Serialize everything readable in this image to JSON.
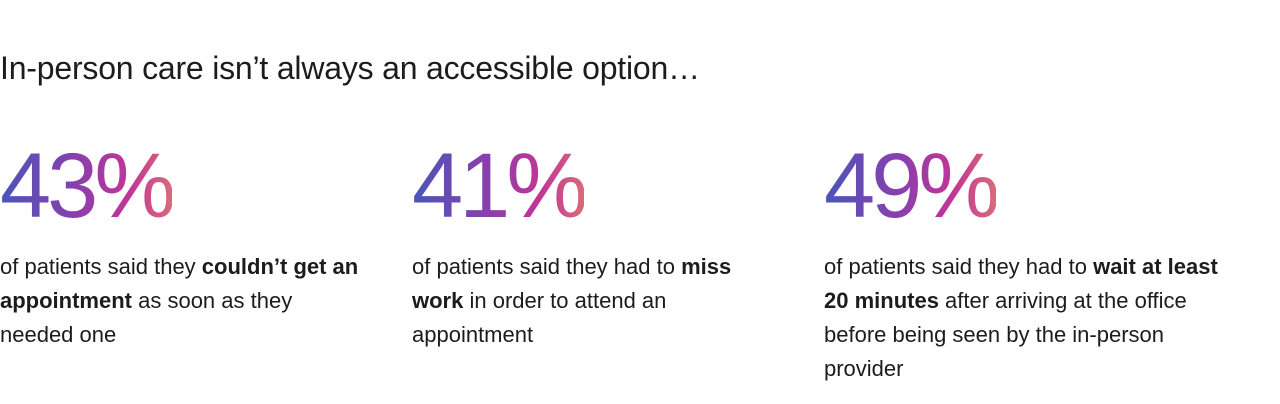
{
  "headline": "In-person care isn’t always an accessible option…",
  "stats": [
    {
      "value": "43%",
      "pre": "of patients said they ",
      "bold": "couldn’t get an appointment",
      "post": " as soon as they needed one"
    },
    {
      "value": "41%",
      "pre": "of patients said they had to ",
      "bold": "miss work",
      "post": " in order to attend an appointment"
    },
    {
      "value": "49%",
      "pre": "of patients said they had to ",
      "bold": "wait at least 20 minutes",
      "post": " after arriving at the office before being seen by the in-person provider"
    }
  ],
  "colors": {
    "gradient_start": "#4a55b8",
    "gradient_mid": "#8a3fae",
    "gradient_end": "#d96a7a",
    "text": "#1c1c1c"
  }
}
